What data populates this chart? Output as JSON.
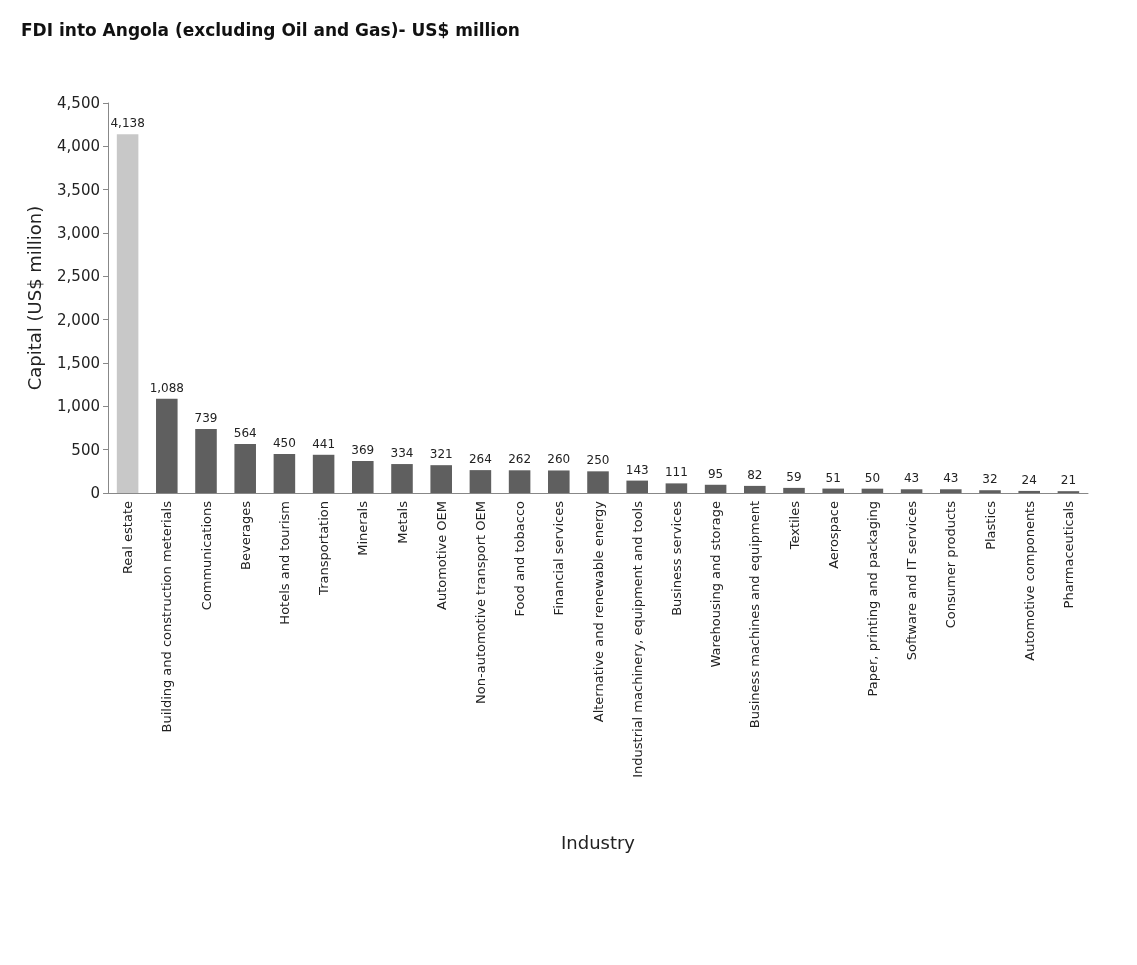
{
  "chart_data": {
    "type": "bar",
    "title": "FDI into Angola (excluding Oil and Gas)- US$ million",
    "xlabel": "Industry",
    "ylabel": "Capital (US$ million)",
    "categories": [
      "Real estate",
      "Building and construction meterials",
      "Communications",
      "Beverages",
      "Hotels and tourism",
      "Transportation",
      "Minerals",
      "Metals",
      "Automotive OEM",
      "Non-automotive transport OEM",
      "Food and tobacco",
      "Financial services",
      "Alternative and renewable energy",
      "Industrial machinery, equipment and tools",
      "Business services",
      "Warehousing and storage",
      "Business machines and equipment",
      "Textiles",
      "Aerospace",
      "Paper, printing and packaging",
      "Software and IT services",
      "Consumer products",
      "Plastics",
      "Automotive components",
      "Pharmaceuticals"
    ],
    "values": [
      4138,
      1088,
      739,
      564,
      450,
      441,
      369,
      334,
      321,
      264,
      262,
      260,
      250,
      143,
      111,
      95,
      82,
      59,
      51,
      50,
      43,
      43,
      32,
      24,
      21
    ],
    "value_labels": [
      "4,138",
      "1,088",
      "739",
      "564",
      "450",
      "441",
      "369",
      "334",
      "321",
      "264",
      "262",
      "260",
      "250",
      "143",
      "111",
      "95",
      "82",
      "59",
      "51",
      "50",
      "43",
      "43",
      "32",
      "24",
      "21"
    ],
    "colors": [
      "#c8c8c8",
      "#5f5f5f",
      "#5f5f5f",
      "#5f5f5f",
      "#5f5f5f",
      "#5f5f5f",
      "#5f5f5f",
      "#5f5f5f",
      "#5f5f5f",
      "#5f5f5f",
      "#5f5f5f",
      "#5f5f5f",
      "#5f5f5f",
      "#5f5f5f",
      "#5f5f5f",
      "#5f5f5f",
      "#5f5f5f",
      "#5f5f5f",
      "#5f5f5f",
      "#5f5f5f",
      "#5f5f5f",
      "#5f5f5f",
      "#5f5f5f",
      "#5f5f5f",
      "#5f5f5f"
    ],
    "ylim": [
      0,
      4500
    ],
    "yticks": [
      {
        "value": 0,
        "label": "0"
      },
      {
        "value": 500,
        "label": "500"
      },
      {
        "value": 1000,
        "label": "1,000"
      },
      {
        "value": 1500,
        "label": "1,500"
      },
      {
        "value": 2000,
        "label": "2,000"
      },
      {
        "value": 2500,
        "label": "2,500"
      },
      {
        "value": 3000,
        "label": "3,000"
      },
      {
        "value": 3500,
        "label": "3,500"
      },
      {
        "value": 4000,
        "label": "4,000"
      },
      {
        "value": 4500,
        "label": "4,500"
      }
    ],
    "grid": false
  }
}
